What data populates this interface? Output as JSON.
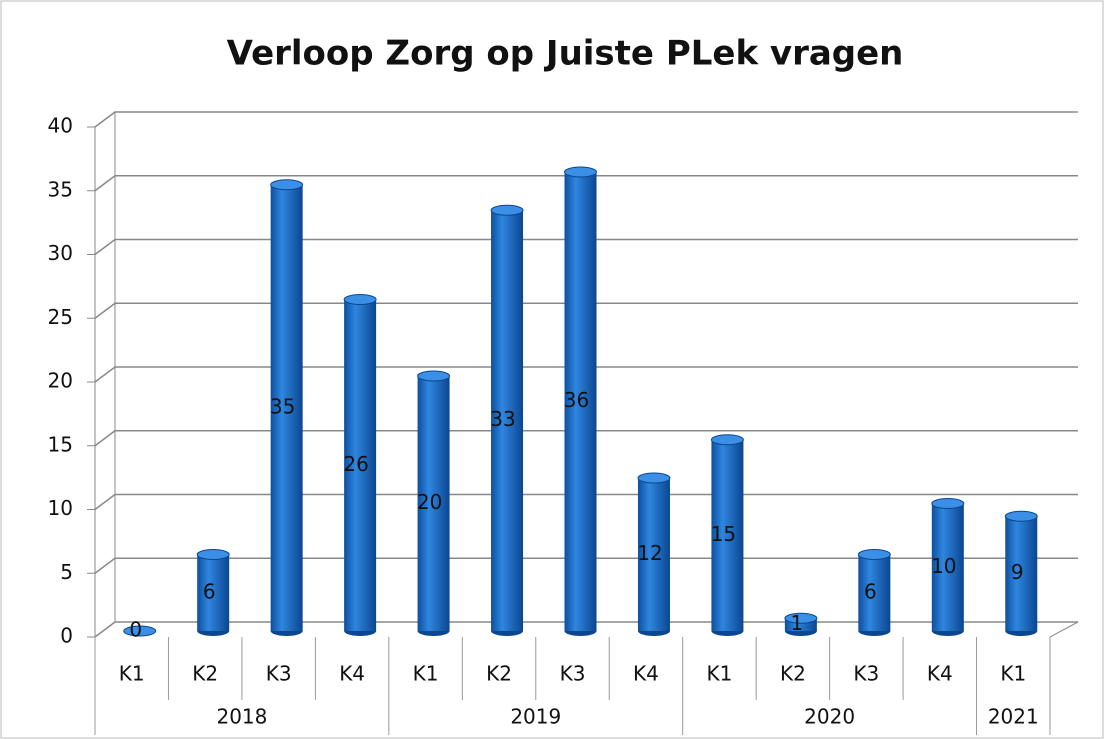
{
  "chart_data": {
    "type": "bar",
    "title": "Verloop Zorg op Juiste PLek vragen",
    "groups": [
      {
        "label": "2018",
        "categories": [
          "K1",
          "K2",
          "K3",
          "K4"
        ],
        "values": [
          0,
          6,
          35,
          26
        ]
      },
      {
        "label": "2019",
        "categories": [
          "K1",
          "K2",
          "K3",
          "K4"
        ],
        "values": [
          20,
          33,
          36,
          12
        ]
      },
      {
        "label": "2020",
        "categories": [
          "K1",
          "K2",
          "K3",
          "K4"
        ],
        "values": [
          15,
          1,
          6,
          10
        ]
      },
      {
        "label": "2021",
        "categories": [
          "K1"
        ],
        "values": [
          9
        ]
      }
    ],
    "color": "#1565c0",
    "ylim": [
      0,
      40
    ],
    "yticks": [
      0,
      5,
      10,
      15,
      20,
      25,
      30,
      35,
      40
    ],
    "grid": true
  }
}
